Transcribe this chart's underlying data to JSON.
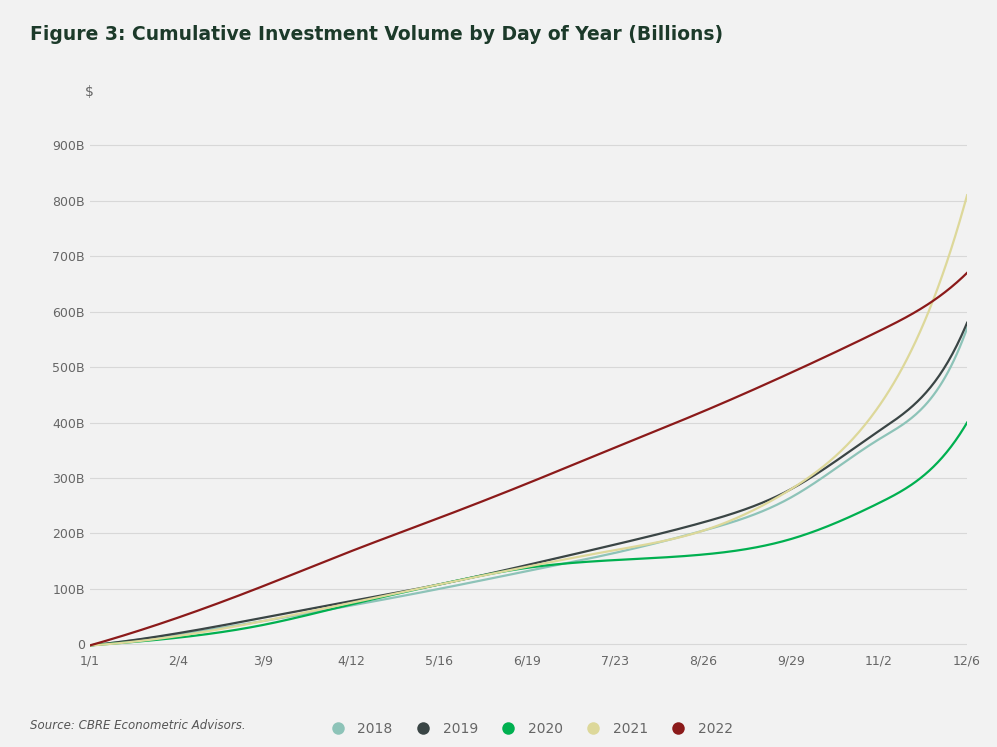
{
  "title": "Figure 3: Cumulative Investment Volume by Day of Year (Billions)",
  "source": "Source: CBRE Econometric Advisors.",
  "background_color": "#f2f2f2",
  "plot_background": "#f2f2f2",
  "title_color": "#1c3a2a",
  "grid_color": "#d8d8d8",
  "separator_color": "#2d5a3d",
  "ylabel_text": "$",
  "x_tick_labels": [
    "1/1",
    "2/4",
    "3/9",
    "4/12",
    "5/16",
    "6/19",
    "7/23",
    "8/26",
    "9/29",
    "11/2",
    "12/6"
  ],
  "x_tick_positions": [
    1,
    35,
    68,
    102,
    136,
    170,
    204,
    238,
    272,
    306,
    340
  ],
  "y_tick_labels": [
    "0",
    "100B",
    "200B",
    "300B",
    "400B",
    "500B",
    "600B",
    "700B",
    "800B",
    "900B"
  ],
  "y_tick_values": [
    0,
    100,
    200,
    300,
    400,
    500,
    600,
    700,
    800,
    900
  ],
  "ylim": [
    -10,
    960
  ],
  "xlim": [
    1,
    340
  ],
  "series": {
    "2018": {
      "color": "#8dc3b8",
      "points": [
        [
          1,
          -2
        ],
        [
          35,
          18
        ],
        [
          68,
          42
        ],
        [
          102,
          70
        ],
        [
          136,
          100
        ],
        [
          170,
          132
        ],
        [
          204,
          165
        ],
        [
          238,
          205
        ],
        [
          272,
          265
        ],
        [
          306,
          370
        ],
        [
          330,
          470
        ],
        [
          340,
          570
        ]
      ]
    },
    "2019": {
      "color": "#3a4545",
      "points": [
        [
          1,
          -2
        ],
        [
          35,
          20
        ],
        [
          68,
          48
        ],
        [
          102,
          78
        ],
        [
          136,
          108
        ],
        [
          170,
          143
        ],
        [
          204,
          180
        ],
        [
          238,
          220
        ],
        [
          272,
          280
        ],
        [
          306,
          385
        ],
        [
          330,
          490
        ],
        [
          340,
          580
        ]
      ]
    },
    "2020": {
      "color": "#00b050",
      "points": [
        [
          1,
          -2
        ],
        [
          35,
          12
        ],
        [
          68,
          35
        ],
        [
          102,
          72
        ],
        [
          136,
          108
        ],
        [
          170,
          138
        ],
        [
          204,
          152
        ],
        [
          238,
          162
        ],
        [
          272,
          190
        ],
        [
          306,
          255
        ],
        [
          330,
          335
        ],
        [
          340,
          400
        ]
      ]
    },
    "2021": {
      "color": "#ddd89a",
      "points": [
        [
          1,
          -2
        ],
        [
          35,
          15
        ],
        [
          68,
          42
        ],
        [
          102,
          75
        ],
        [
          136,
          108
        ],
        [
          170,
          140
        ],
        [
          204,
          170
        ],
        [
          238,
          205
        ],
        [
          272,
          280
        ],
        [
          306,
          430
        ],
        [
          330,
          660
        ],
        [
          340,
          810
        ]
      ]
    },
    "2022": {
      "color": "#8b1a1a",
      "points": [
        [
          1,
          -2
        ],
        [
          35,
          48
        ],
        [
          68,
          105
        ],
        [
          102,
          168
        ],
        [
          136,
          228
        ],
        [
          170,
          290
        ],
        [
          204,
          355
        ],
        [
          238,
          420
        ],
        [
          272,
          490
        ],
        [
          306,
          565
        ],
        [
          330,
          630
        ],
        [
          340,
          670
        ]
      ]
    }
  },
  "legend_order": [
    "2018",
    "2019",
    "2020",
    "2021",
    "2022"
  ],
  "line_width": 1.6
}
